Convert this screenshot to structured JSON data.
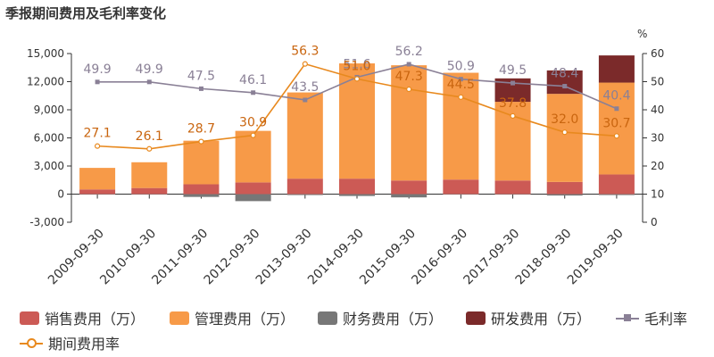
{
  "title": "季报期间费用及毛利率变化",
  "chart_data": {
    "type": "bar",
    "stacked": true,
    "categories": [
      "2009-09-30",
      "2010-09-30",
      "2011-09-30",
      "2012-09-30",
      "2013-09-30",
      "2014-09-30",
      "2015-09-30",
      "2016-09-30",
      "2017-09-30",
      "2018-09-30",
      "2019-09-30"
    ],
    "y_left": {
      "ylim": [
        -3000,
        15000
      ],
      "ticks": [
        -3000,
        0,
        3000,
        6000,
        9000,
        12000,
        15000
      ],
      "tick_labels": [
        "-3,000",
        "0",
        "3,000",
        "6,000",
        "9,000",
        "12,000",
        "15,000"
      ]
    },
    "y_right": {
      "unit": "%",
      "ylim": [
        0,
        60
      ],
      "ticks": [
        0,
        10,
        20,
        30,
        40,
        50,
        60
      ]
    },
    "series": [
      {
        "name": "销售费用（万）",
        "axis": "left",
        "color": "#cc5a55",
        "values": [
          500,
          650,
          1050,
          1250,
          1650,
          1650,
          1450,
          1550,
          1450,
          1300,
          2100
        ]
      },
      {
        "name": "管理费用（万）",
        "axis": "left",
        "color": "#f79a48",
        "values": [
          2300,
          2750,
          4650,
          5500,
          9200,
          12300,
          12300,
          11400,
          8400,
          9400,
          9800
        ]
      },
      {
        "name": "财务费用（万）",
        "axis": "left",
        "color": "#777777",
        "values": [
          -50,
          -50,
          -300,
          -750,
          -100,
          -200,
          -350,
          -50,
          -50,
          -150,
          -100
        ]
      },
      {
        "name": "研发费用（万）",
        "axis": "left",
        "color": "#7b2a2a",
        "values": [
          0,
          0,
          0,
          0,
          0,
          0,
          0,
          0,
          2500,
          2500,
          2900
        ]
      },
      {
        "name": "毛利率",
        "axis": "right",
        "type": "line",
        "color": "#8a8096",
        "marker": "square",
        "values": [
          49.9,
          49.9,
          47.5,
          46.1,
          43.5,
          51.6,
          56.2,
          50.9,
          49.5,
          48.4,
          40.4
        ],
        "labels": [
          "49.9",
          "49.9",
          "47.5",
          "46.1",
          "43.5",
          "51.6",
          "56.2",
          "50.9",
          "49.5",
          "48.4",
          "40.4"
        ]
      },
      {
        "name": "期间费用率",
        "axis": "right",
        "type": "line",
        "color": "#e8891e",
        "marker": "circle",
        "values": [
          27.1,
          26.1,
          28.7,
          30.9,
          56.3,
          51.0,
          47.3,
          44.5,
          37.8,
          32.0,
          30.7
        ],
        "labels": [
          "27.1",
          "26.1",
          "28.7",
          "30.9",
          "56.3",
          "51.0",
          "47.3",
          "44.5",
          "37.8",
          "32.0",
          "30.7"
        ]
      }
    ],
    "grid": false,
    "legend_position": "bottom"
  }
}
